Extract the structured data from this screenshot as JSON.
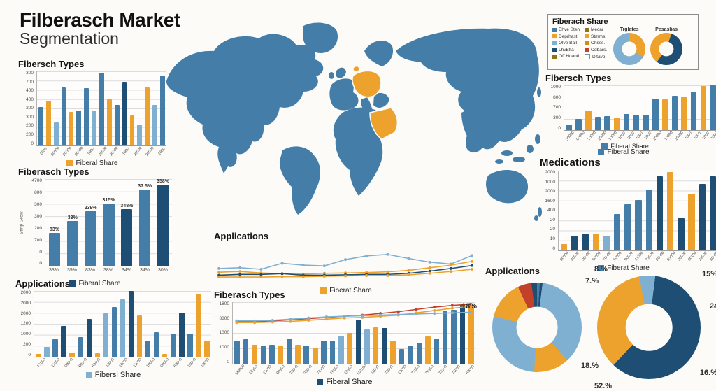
{
  "page": {
    "title_line1": "Filberasch Market",
    "title_line2": "Segmentation"
  },
  "colors": {
    "steel": "#447ea8",
    "light": "#7fb0d1",
    "navy": "#1f4e74",
    "orange": "#eda22d",
    "red": "#c2412a",
    "olive": "#8f7316",
    "amber": "#d2891f",
    "white": "#ffffff"
  },
  "map": {
    "land_color": "#4581ab",
    "highlight_color": "#eda22d",
    "highlighted_regions": [
      "Central Europe",
      "Arabian Peninsula"
    ]
  },
  "share_box": {
    "title": "Fiberach Share",
    "col1": [
      {
        "label": "Ehve Sten",
        "color": "steel"
      },
      {
        "label": "Deprhast",
        "color": "orange"
      },
      {
        "label": "Olve Ball",
        "color": "light"
      },
      {
        "label": "LhvBlta",
        "color": "navy"
      },
      {
        "label": "Off Hoantl",
        "color": "olive"
      }
    ],
    "col2": [
      {
        "label": "Mecar",
        "color": "olive"
      },
      {
        "label": "Stmms.",
        "color": "orange"
      },
      {
        "label": "Ohsss.",
        "color": "amber"
      },
      {
        "label": "Odbars.",
        "color": "red"
      },
      {
        "label": "Dltavo",
        "color": "white"
      }
    ]
  },
  "chart_data": [
    {
      "id": "types-top-left",
      "type": "bar",
      "title": "Fibersch Types",
      "y_ticks": [
        "300",
        "700",
        "400",
        "400",
        "200",
        "300",
        "200",
        "200",
        "0"
      ],
      "x_labels": [
        "1000",
        "80000",
        "20000",
        "00000",
        "1000",
        "20000",
        "90000",
        "1000",
        "90000",
        "90000",
        "1000"
      ],
      "bars": [
        {
          "v": 52,
          "c": "steel"
        },
        {
          "v": 60,
          "c": "orange"
        },
        {
          "v": 31,
          "c": "light"
        },
        {
          "v": 78,
          "c": "steel"
        },
        {
          "v": 45,
          "c": "orange"
        },
        {
          "v": 47,
          "c": "steel"
        },
        {
          "v": 77,
          "c": "steel"
        },
        {
          "v": 46,
          "c": "light"
        },
        {
          "v": 98,
          "c": "steel"
        },
        {
          "v": 62,
          "c": "orange"
        },
        {
          "v": 55,
          "c": "steel"
        },
        {
          "v": 86,
          "c": "navy"
        },
        {
          "v": 41,
          "c": "orange"
        },
        {
          "v": 28,
          "c": "light"
        },
        {
          "v": 78,
          "c": "orange"
        },
        {
          "v": 55,
          "c": "light"
        },
        {
          "v": 94,
          "c": "steel"
        }
      ],
      "legend": {
        "label": "Fiberal Share",
        "color": "orange"
      }
    },
    {
      "id": "types-mid-left",
      "type": "bar",
      "title": "Fiberasch Types",
      "y_title": "Sttrip Grow",
      "y_ticks": [
        "4700",
        "800",
        "300",
        "300",
        "200",
        "700",
        "0",
        "0"
      ],
      "x_labels": [
        "33%",
        "39%",
        "83%",
        "38%",
        "34%",
        "34%",
        "30%"
      ],
      "bars": [
        {
          "v": 38,
          "c": "steel",
          "l": "83%"
        },
        {
          "v": 52,
          "c": "steel",
          "l": "33%"
        },
        {
          "v": 63,
          "c": "steel",
          "l": "239%"
        },
        {
          "v": 72,
          "c": "steel",
          "l": "315%"
        },
        {
          "v": 65,
          "c": "navy",
          "l": "348%"
        },
        {
          "v": 88,
          "c": "steel",
          "l": "37.5%"
        },
        {
          "v": 100,
          "c": "navy",
          "l": "358%"
        }
      ],
      "legend": {
        "label": "Fiberal Share",
        "color": "navy"
      }
    },
    {
      "id": "applications-bottom-left",
      "type": "bar",
      "title": "Applications",
      "y_ticks": [
        "2000",
        "2000",
        "2000",
        "1200",
        "1000",
        "200",
        "0"
      ],
      "x_labels": [
        "71000",
        "11000",
        "90000",
        "60100",
        "60400",
        "18000",
        "10000",
        "11000",
        "10000",
        "90000",
        "60000",
        "18000",
        "10000"
      ],
      "bars": [
        {
          "v": 4,
          "c": "orange"
        },
        {
          "v": 15,
          "c": "light"
        },
        {
          "v": 27,
          "c": "steel"
        },
        {
          "v": 47,
          "c": "navy"
        },
        {
          "v": 6,
          "c": "orange"
        },
        {
          "v": 30,
          "c": "steel"
        },
        {
          "v": 57,
          "c": "navy"
        },
        {
          "v": 5,
          "c": "orange"
        },
        {
          "v": 66,
          "c": "light"
        },
        {
          "v": 76,
          "c": "steel"
        },
        {
          "v": 87,
          "c": "light"
        },
        {
          "v": 100,
          "c": "navy"
        },
        {
          "v": 63,
          "c": "orange"
        },
        {
          "v": 24,
          "c": "steel"
        },
        {
          "v": 37,
          "c": "steel"
        },
        {
          "v": 4,
          "c": "orange"
        },
        {
          "v": 34,
          "c": "steel"
        },
        {
          "v": 67,
          "c": "navy"
        },
        {
          "v": 35,
          "c": "steel"
        },
        {
          "v": 95,
          "c": "orange"
        },
        {
          "v": 24,
          "c": "orange"
        }
      ],
      "legend": {
        "label": "Fibersl Share",
        "color": "light"
      }
    },
    {
      "id": "applications-lines-middle",
      "type": "line",
      "title": "Applications",
      "lines": [
        {
          "c": "light",
          "values": [
            38,
            40,
            36,
            52,
            47,
            45,
            62,
            72,
            76,
            65,
            55,
            50,
            73
          ]
        },
        {
          "c": "orange",
          "values": [
            28,
            30,
            26,
            24,
            23,
            25,
            26,
            27,
            29,
            33,
            40,
            47,
            57
          ]
        },
        {
          "c": "navy",
          "values": [
            20,
            22,
            22,
            24,
            20,
            20,
            21,
            22,
            22,
            25,
            31,
            38,
            46
          ]
        },
        {
          "c": "orange",
          "values": [
            15,
            15,
            15,
            16,
            16,
            17,
            18,
            19,
            19,
            21,
            25,
            30,
            36
          ]
        }
      ],
      "legend": {
        "label": "Fiberat Share",
        "color": "orange"
      }
    },
    {
      "id": "types-bottom-middle",
      "type": "bar",
      "title": "Fiberasch Types",
      "y_ticks": [
        "1800",
        "8800",
        "1000",
        "1000",
        "0"
      ],
      "x_labels": [
        "M0000",
        "18100",
        "11000",
        "80100",
        "78000",
        "38000",
        "78100",
        "76000",
        "18100",
        "101100",
        "11000",
        "78000",
        "13000",
        "71000",
        "76100",
        "78100",
        "71000",
        "60000"
      ],
      "bars": [
        {
          "v": 37,
          "c": "steel"
        },
        {
          "v": 40,
          "c": "steel"
        },
        {
          "v": 31,
          "c": "orange"
        },
        {
          "v": 30,
          "c": "steel"
        },
        {
          "v": 31,
          "c": "steel"
        },
        {
          "v": 30,
          "c": "orange"
        },
        {
          "v": 41,
          "c": "steel"
        },
        {
          "v": 31,
          "c": "orange"
        },
        {
          "v": 30,
          "c": "steel"
        },
        {
          "v": 25,
          "c": "orange"
        },
        {
          "v": 38,
          "c": "steel"
        },
        {
          "v": 37,
          "c": "steel"
        },
        {
          "v": 46,
          "c": "light"
        },
        {
          "v": 50,
          "c": "orange"
        },
        {
          "v": 72,
          "c": "navy"
        },
        {
          "v": 56,
          "c": "light"
        },
        {
          "v": 59,
          "c": "orange"
        },
        {
          "v": 58,
          "c": "navy"
        },
        {
          "v": 38,
          "c": "orange"
        },
        {
          "v": 24,
          "c": "steel"
        },
        {
          "v": 30,
          "c": "steel"
        },
        {
          "v": 34,
          "c": "steel"
        },
        {
          "v": 44,
          "c": "orange"
        },
        {
          "v": 41,
          "c": "steel"
        },
        {
          "v": 85,
          "c": "steel"
        },
        {
          "v": 87,
          "c": "steel"
        },
        {
          "v": 98,
          "c": "navy"
        },
        {
          "v": 96,
          "c": "orange"
        }
      ],
      "lines": [
        {
          "c": "red",
          "values": [
            70,
            70,
            71,
            73,
            75,
            77,
            79,
            81,
            84,
            87,
            91,
            95,
            98,
            100
          ]
        },
        {
          "c": "orange",
          "values": [
            68,
            68,
            69,
            70,
            72,
            74,
            76,
            77,
            79,
            81,
            85,
            89,
            93,
            96
          ]
        },
        {
          "c": "light",
          "values": [
            71,
            71,
            72,
            74,
            76,
            78,
            79,
            80,
            81,
            82,
            83,
            84,
            85,
            86
          ]
        }
      ],
      "legend": {
        "label": "Fiberal Share",
        "color": "navy"
      }
    },
    {
      "id": "types-right",
      "type": "bar",
      "title": "Fibersch Types",
      "y_ticks": [
        "1000",
        "800",
        "700",
        "300",
        "0"
      ],
      "x_labels": [
        "30000",
        "00000",
        "20000",
        "10000",
        "10000",
        "1000",
        "8000",
        "1000",
        "1000",
        "10000",
        "10000",
        "10000",
        "1000",
        "1000",
        "1000",
        "1000"
      ],
      "bars": [
        {
          "v": 13,
          "c": "steel"
        },
        {
          "v": 25,
          "c": "steel"
        },
        {
          "v": 43,
          "c": "orange"
        },
        {
          "v": 30,
          "c": "steel"
        },
        {
          "v": 32,
          "c": "steel"
        },
        {
          "v": 28,
          "c": "orange"
        },
        {
          "v": 36,
          "c": "steel"
        },
        {
          "v": 34,
          "c": "steel"
        },
        {
          "v": 34,
          "c": "steel"
        },
        {
          "v": 71,
          "c": "steel"
        },
        {
          "v": 69,
          "c": "orange"
        },
        {
          "v": 77,
          "c": "steel"
        },
        {
          "v": 75,
          "c": "orange"
        },
        {
          "v": 86,
          "c": "steel"
        },
        {
          "v": 99,
          "c": "orange"
        },
        {
          "v": 100,
          "c": "steel"
        }
      ],
      "legend": {
        "label": "Fiberat Share",
        "color": "steel"
      }
    },
    {
      "id": "medications-right",
      "type": "bar",
      "title": "Medications",
      "y_ticks": [
        "2000",
        "1000",
        "2000",
        "1600",
        "400",
        "20",
        "20",
        "10",
        "0"
      ],
      "x_labels": [
        "90000",
        "80000",
        "00000",
        "60000",
        "70000",
        "10000",
        "80000",
        "11000",
        "71000",
        "20000",
        "91000",
        "00000",
        "00100",
        "21000",
        "80000"
      ],
      "bars": [
        {
          "v": 8,
          "c": "orange"
        },
        {
          "v": 18,
          "c": "navy"
        },
        {
          "v": 21,
          "c": "navy"
        },
        {
          "v": 21,
          "c": "orange"
        },
        {
          "v": 18,
          "c": "light"
        },
        {
          "v": 46,
          "c": "steel"
        },
        {
          "v": 58,
          "c": "steel"
        },
        {
          "v": 63,
          "c": "steel"
        },
        {
          "v": 76,
          "c": "steel"
        },
        {
          "v": 93,
          "c": "navy"
        },
        {
          "v": 98,
          "c": "orange"
        },
        {
          "v": 40,
          "c": "navy"
        },
        {
          "v": 71,
          "c": "orange"
        },
        {
          "v": 83,
          "c": "navy"
        },
        {
          "v": 93,
          "c": "navy"
        }
      ],
      "legend": {
        "label": "Fiberat Share",
        "color": "steel"
      },
      "legend_top": {
        "label": "Fiberal Share",
        "color": "steel"
      }
    },
    {
      "id": "share-donut-left",
      "type": "pie",
      "title": "Trglates",
      "hole": 46,
      "slices": [
        {
          "c": "orange",
          "p": 33
        },
        {
          "c": "light",
          "p": 67
        }
      ],
      "labels": []
    },
    {
      "id": "share-donut-right",
      "type": "pie",
      "title": "Pesaslias",
      "hole": 46,
      "slices": [
        {
          "c": "orange",
          "p": 5
        },
        {
          "c": "navy",
          "p": 55
        },
        {
          "c": "orange",
          "p": 40
        }
      ],
      "labels": []
    },
    {
      "id": "applications-donut-left",
      "type": "pie",
      "title": "Applications",
      "hole": 46,
      "slices": [
        {
          "c": "steel",
          "p": 1
        },
        {
          "c": "navy",
          "p": 1
        },
        {
          "c": "light",
          "p": 36
        },
        {
          "c": "orange",
          "p": 13
        },
        {
          "c": "light",
          "p": 28
        },
        {
          "c": "orange",
          "p": 14
        },
        {
          "c": "red",
          "p": 5
        },
        {
          "c": "navy",
          "p": 2
        }
      ],
      "labels": [
        {
          "t": "18%",
          "pos": "l"
        },
        {
          "t": "7.%",
          "pos": "tr"
        },
        {
          "t": "18.%",
          "pos": "br"
        }
      ]
    },
    {
      "id": "applications-donut-right",
      "type": "pie",
      "title": "",
      "hole": 45,
      "slices": [
        {
          "c": "light",
          "p": 2
        },
        {
          "c": "navy",
          "p": 60
        },
        {
          "c": "orange",
          "p": 35
        },
        {
          "c": "light",
          "p": 3
        }
      ],
      "labels": [
        {
          "t": "8.%",
          "pos": "tl"
        },
        {
          "t": "15%",
          "pos": "tr"
        },
        {
          "t": "24.%",
          "pos": "r"
        },
        {
          "t": "16.%",
          "pos": "br"
        },
        {
          "t": "52.%",
          "pos": "bl"
        }
      ]
    }
  ]
}
